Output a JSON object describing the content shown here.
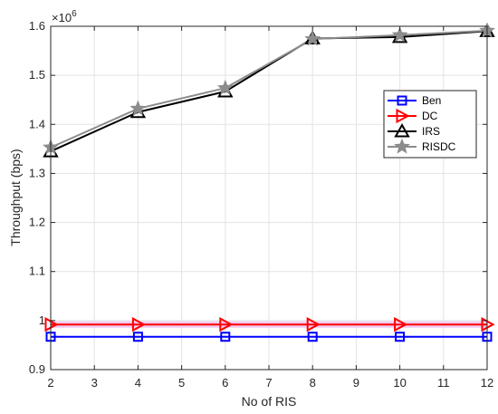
{
  "chart_data": {
    "type": "line",
    "xlabel": "No of RIS",
    "ylabel": "Throughput (bps)",
    "y_exponent_label": "×10",
    "y_exponent_power": "6",
    "xlim": [
      2,
      12
    ],
    "ylim": [
      0.9,
      1.6
    ],
    "xticks": [
      "2",
      "3",
      "4",
      "5",
      "6",
      "7",
      "8",
      "9",
      "10",
      "11",
      "12"
    ],
    "yticks": [
      "0.9",
      "1",
      "1.1",
      "1.2",
      "1.3",
      "1.4",
      "1.5",
      "1.6"
    ],
    "grid": true,
    "legend_position": "right",
    "x": [
      2,
      4,
      6,
      8,
      10,
      12
    ],
    "series": [
      {
        "name": "Ben",
        "values": [
          0.967,
          0.967,
          0.967,
          0.967,
          0.967,
          0.967
        ],
        "color": "#0000ff",
        "marker": "square"
      },
      {
        "name": "DC",
        "values": [
          0.992,
          0.992,
          0.992,
          0.992,
          0.992,
          0.992
        ],
        "color": "#ff0000",
        "marker": "triangle-right"
      },
      {
        "name": "IRS",
        "values": [
          1.345,
          1.425,
          1.467,
          1.575,
          1.578,
          1.59
        ],
        "color": "#000000",
        "marker": "triangle-up"
      },
      {
        "name": "RISDC",
        "values": [
          1.353,
          1.432,
          1.474,
          1.574,
          1.582,
          1.591
        ],
        "color": "#8c8c8c",
        "marker": "star"
      }
    ]
  }
}
